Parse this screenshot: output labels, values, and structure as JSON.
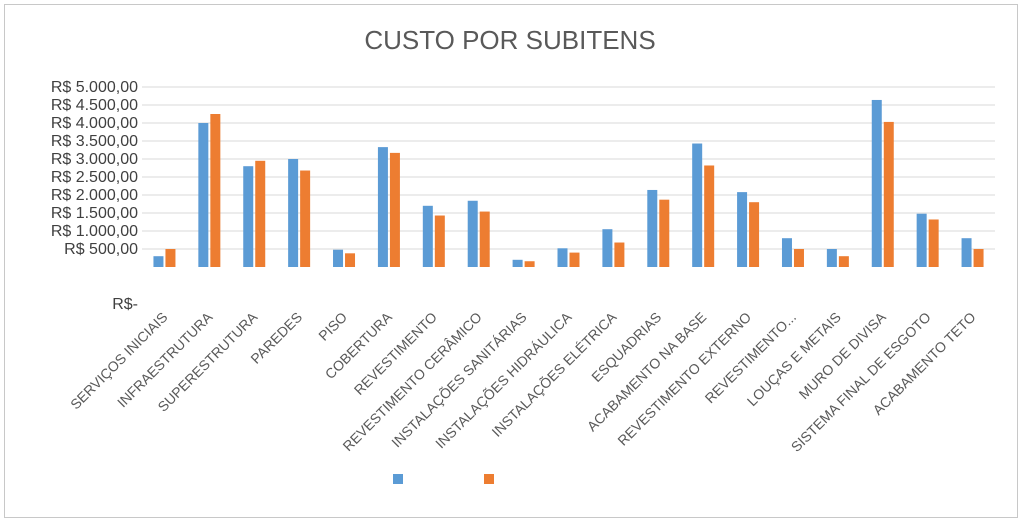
{
  "chart_data": {
    "type": "bar",
    "title": "CUSTO POR SUBITENS",
    "xlabel": "",
    "ylabel": "",
    "ylim": [
      0,
      5000
    ],
    "y_ticks": [
      0,
      500,
      1000,
      1500,
      2000,
      2500,
      3000,
      3500,
      4000,
      4500,
      5000
    ],
    "y_tick_labels": [
      "R$-",
      "R$ 500,00",
      "R$ 1.000,00",
      "R$ 1.500,00",
      "R$ 2.000,00",
      "R$ 2.500,00",
      "R$ 3.000,00",
      "R$ 3.500,00",
      "R$ 4.000,00",
      "R$ 4.500,00",
      "R$ 5.000,00"
    ],
    "grid": true,
    "legend_position": "bottom",
    "categories": [
      "SERVIÇOS INICIAIS",
      "INFRAESTRUTURA",
      "SUPERESTRUTURA",
      "PAREDES",
      "PISO",
      "COBERTURA",
      "REVESTIMENTO",
      "REVESTIMENTO CERÂMICO",
      "INSTALAÇÕES SANITÁRIAS",
      "INSTALAÇÕES HIDRÁULICA",
      "INSTALAÇÕES ELÉTRICA",
      "ESQUADRIAS",
      "ACABAMENTO NA BASE",
      "REVESTIMENTO EXTERNO",
      "REVESTIMENTO...",
      "LOUÇAS E METAIS",
      "MURO DE DIVISA",
      "SISTEMA FINAL DE ESGOTO",
      "ACABAMENTO TETO"
    ],
    "series": [
      {
        "color": "#5b9bd5",
        "values": [
          300,
          4000,
          2800,
          3000,
          480,
          3330,
          1700,
          1840,
          200,
          520,
          1050,
          2140,
          3430,
          2080,
          800,
          500,
          4640,
          1480,
          800
        ]
      },
      {
        "color": "#ed7d31",
        "values": [
          500,
          4250,
          2950,
          2680,
          380,
          3170,
          1430,
          1540,
          160,
          400,
          680,
          1870,
          2820,
          1800,
          500,
          300,
          4030,
          1320,
          500
        ]
      }
    ]
  }
}
